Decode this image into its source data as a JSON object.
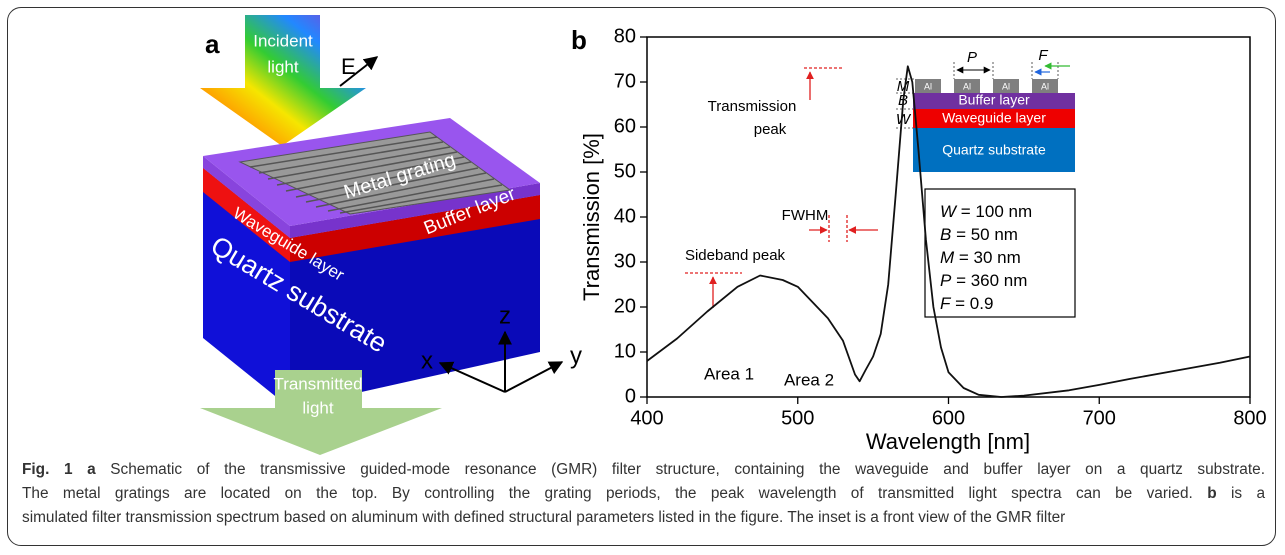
{
  "panel_a": {
    "label": "a",
    "incident": [
      "Incident",
      "light"
    ],
    "field": "E",
    "grating": "Metal grating",
    "buffer": "Buffer layer",
    "waveguide": "Waveguide layer",
    "substrate": "Quartz substrate",
    "axes": [
      "z",
      "x",
      "y"
    ],
    "transmitted": [
      "Transmitted",
      "light"
    ]
  },
  "chart_data": {
    "type": "line",
    "panel_label": "b",
    "xlabel": "Wavelength [nm]",
    "ylabel": "Transmission [%]",
    "x": [
      400,
      420,
      440,
      460,
      475,
      490,
      500,
      520,
      530,
      538,
      541,
      545,
      550,
      555,
      560,
      565,
      570,
      573,
      576,
      580,
      585,
      590,
      595,
      600,
      610,
      620,
      635,
      650,
      680,
      700,
      720,
      750,
      780,
      800
    ],
    "values": [
      8,
      13,
      19,
      24.5,
      27,
      26,
      24.5,
      17.5,
      12.5,
      5,
      3.5,
      6,
      9,
      14,
      25,
      45,
      66,
      73.5,
      70,
      55,
      35,
      20,
      11,
      5.5,
      2,
      0.5,
      0,
      0.3,
      1.5,
      2.7,
      4,
      5.8,
      7.6,
      9
    ],
    "color": "#111111",
    "xlim": [
      400,
      800
    ],
    "ylim": [
      0,
      80
    ],
    "xticks": [
      400,
      500,
      600,
      700,
      800
    ],
    "yticks": [
      0,
      10,
      20,
      30,
      40,
      50,
      60,
      70,
      80
    ],
    "annotations": [
      "Transmission",
      "peak",
      "FWHM",
      "Sideband peak",
      "Area 1",
      "Area 2"
    ],
    "inset": {
      "metal": [
        "Al",
        "Al",
        "Al",
        "Al"
      ],
      "layers": [
        "Buffer layer",
        "Waveguide layer",
        "Quartz substrate"
      ],
      "symbols": [
        "M",
        "B",
        "W",
        "P",
        "F"
      ]
    },
    "parameters": [
      {
        "symbol": "W",
        "text": " = 100 nm"
      },
      {
        "symbol": "B",
        "text": " = 50 nm"
      },
      {
        "symbol": "M",
        "text": " = 30 nm"
      },
      {
        "symbol": "P",
        "text": " = 360 nm"
      },
      {
        "symbol": "F",
        "text": " = 0.9"
      }
    ]
  },
  "caption": {
    "lines": [
      [
        {
          "text": "Fig. 1",
          "bold": true
        },
        {
          "text": " a",
          "bold": true
        },
        {
          "text": " Schematic of the transmissive guided-mode resonance (GMR) filter structure, containing the waveguide and buffer layer on a quartz substrate.",
          "bold": false
        }
      ],
      [
        {
          "text": "The metal gratings are located on the top. By controlling the grating periods, the peak wavelength of transmitted light spectra can be varied. ",
          "bold": false
        },
        {
          "text": "b",
          "bold": true
        },
        {
          "text": " is a",
          "bold": false
        }
      ],
      [
        {
          "text": "simulated filter transmission spectrum based on aluminum with defined structural parameters listed in the figure. The inset is a front view of the GMR filter",
          "bold": false
        }
      ]
    ]
  }
}
